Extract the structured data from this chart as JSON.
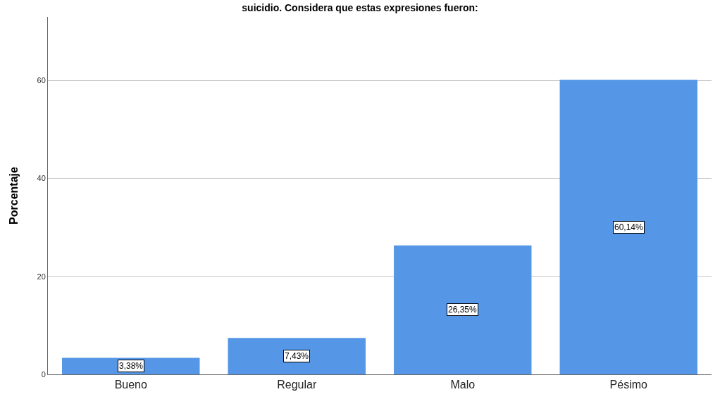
{
  "chart_data": {
    "type": "bar",
    "title": "suicidio. Considera que estas expresiones fueron:",
    "ylabel": "Porcentaje",
    "categories": [
      "Bueno",
      "Regular",
      "Malo",
      "Pésimo"
    ],
    "values": [
      3.38,
      7.43,
      26.35,
      60.14
    ],
    "value_labels": [
      "3,38%",
      "7,43%",
      "26,35%",
      "60,14%"
    ],
    "color": "#5596e6",
    "ylim": [
      0,
      73
    ],
    "yticks": [
      0,
      20,
      40,
      60
    ],
    "grid": "y",
    "legend": false
  }
}
